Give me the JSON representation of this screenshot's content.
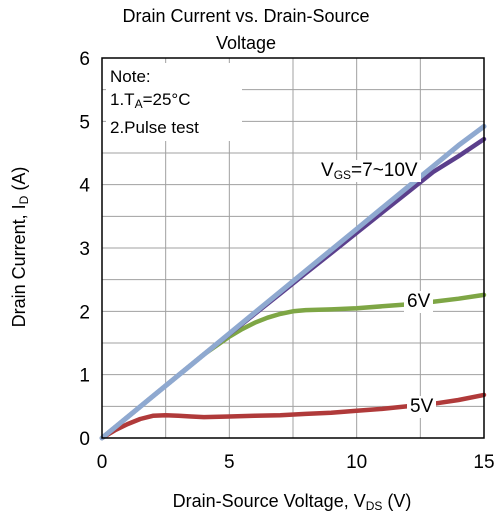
{
  "chart_data": {
    "type": "line",
    "title_line1": "Drain Current vs. Drain-Source",
    "title_line2": "Voltage",
    "xlabel": {
      "main": "Drain-Source Voltage, V",
      "sub": "DS",
      "unit": " (V)"
    },
    "ylabel": {
      "main": "Drain Current, I",
      "sub": "D",
      "unit": " (A)"
    },
    "xlim": [
      0,
      15
    ],
    "ylim": [
      0,
      6
    ],
    "xticks": [
      "0",
      "5",
      "10",
      "15"
    ],
    "yticks": [
      "0",
      "1",
      "2",
      "3",
      "4",
      "5",
      "6"
    ],
    "grid": true,
    "note": {
      "line1": "Note:",
      "line2_prefix": "1.T",
      "line2_sub": "A",
      "line2_suffix": "=25°C",
      "line3": "2.Pulse test"
    },
    "series": [
      {
        "name": "VGS=7~10V",
        "label_main": "V",
        "label_sub": "GS",
        "label_suffix": "=7~10V",
        "color": "#5b3f8c",
        "x": [
          0,
          1,
          2,
          3,
          4,
          5,
          6,
          7,
          8,
          9,
          10,
          11,
          12,
          13,
          14,
          15
        ],
        "y": [
          0,
          0.33,
          0.66,
          0.99,
          1.32,
          1.64,
          1.96,
          2.28,
          2.6,
          2.92,
          3.24,
          3.56,
          3.88,
          4.2,
          4.45,
          4.72
        ]
      },
      {
        "name": "VGS=7~10V (upper)",
        "color": "#8fa9d0",
        "x": [
          0,
          1,
          2,
          3,
          4,
          5,
          6,
          7,
          8,
          9,
          10,
          11,
          12,
          13,
          14,
          15
        ],
        "y": [
          0,
          0.33,
          0.66,
          0.99,
          1.32,
          1.65,
          1.98,
          2.31,
          2.64,
          2.97,
          3.3,
          3.63,
          3.96,
          4.29,
          4.62,
          4.92
        ]
      },
      {
        "name": "6V",
        "label": "6V",
        "color": "#7ea645",
        "x": [
          0,
          1,
          2,
          3,
          4,
          5,
          5.5,
          6,
          6.5,
          7,
          7.5,
          8,
          9,
          10,
          11,
          12,
          13,
          14,
          15
        ],
        "y": [
          0,
          0.33,
          0.66,
          0.99,
          1.32,
          1.6,
          1.72,
          1.82,
          1.9,
          1.96,
          2.0,
          2.02,
          2.03,
          2.05,
          2.08,
          2.11,
          2.15,
          2.2,
          2.26
        ]
      },
      {
        "name": "5V",
        "label": "5V",
        "color": "#b03a3a",
        "x": [
          0,
          0.5,
          1,
          1.5,
          2,
          2.5,
          3,
          3.5,
          4,
          5,
          6,
          7,
          8,
          9,
          10,
          11,
          12,
          13,
          14,
          15
        ],
        "y": [
          0,
          0.12,
          0.22,
          0.3,
          0.35,
          0.36,
          0.35,
          0.34,
          0.33,
          0.34,
          0.35,
          0.36,
          0.38,
          0.4,
          0.43,
          0.46,
          0.5,
          0.54,
          0.6,
          0.68
        ]
      }
    ]
  }
}
